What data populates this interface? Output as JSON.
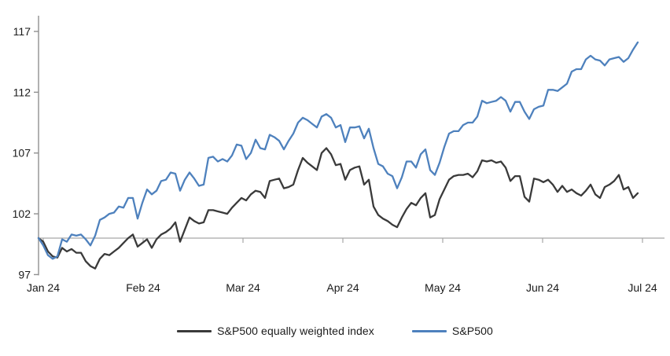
{
  "chart_data": {
    "type": "line",
    "title": "",
    "xlabel": "",
    "ylabel": "",
    "ylim": [
      97,
      117
    ],
    "yticks": [
      97,
      102,
      107,
      112,
      117
    ],
    "xtick_labels": [
      "Jan 24",
      "Feb 24",
      "Mar 24",
      "Apr 24",
      "May 24",
      "Jun 24",
      "Jul 24"
    ],
    "axis_crosses_at": 100,
    "grid": false,
    "legend_position": "bottom",
    "axis_color": "#909090",
    "reference_line_color": "#a6a6a6",
    "tick_label_color": "#1a1a1a",
    "x": [
      "Dec 29",
      "Jan 2",
      "Jan 3",
      "Jan 4",
      "Jan 5",
      "Jan 8",
      "Jan 9",
      "Jan 10",
      "Jan 11",
      "Jan 12",
      "Jan 16",
      "Jan 17",
      "Jan 18",
      "Jan 19",
      "Jan 22",
      "Jan 23",
      "Jan 24",
      "Jan 25",
      "Jan 26",
      "Jan 29",
      "Jan 30",
      "Jan 31",
      "Feb 1",
      "Feb 2",
      "Feb 5",
      "Feb 6",
      "Feb 7",
      "Feb 8",
      "Feb 9",
      "Feb 12",
      "Feb 13",
      "Feb 14",
      "Feb 15",
      "Feb 16",
      "Feb 20",
      "Feb 21",
      "Feb 22",
      "Feb 23",
      "Feb 26",
      "Feb 27",
      "Feb 28",
      "Feb 29",
      "Mar 1",
      "Mar 4",
      "Mar 5",
      "Mar 6",
      "Mar 7",
      "Mar 8",
      "Mar 11",
      "Mar 12",
      "Mar 13",
      "Mar 14",
      "Mar 15",
      "Mar 18",
      "Mar 19",
      "Mar 20",
      "Mar 21",
      "Mar 22",
      "Mar 25",
      "Mar 26",
      "Mar 27",
      "Mar 28",
      "Apr 1",
      "Apr 2",
      "Apr 3",
      "Apr 4",
      "Apr 5",
      "Apr 8",
      "Apr 9",
      "Apr 10",
      "Apr 11",
      "Apr 12",
      "Apr 15",
      "Apr 16",
      "Apr 17",
      "Apr 18",
      "Apr 19",
      "Apr 22",
      "Apr 23",
      "Apr 24",
      "Apr 25",
      "Apr 26",
      "Apr 29",
      "Apr 30",
      "May 1",
      "May 2",
      "May 3",
      "May 6",
      "May 7",
      "May 8",
      "May 9",
      "May 10",
      "May 13",
      "May 14",
      "May 15",
      "May 16",
      "May 17",
      "May 20",
      "May 21",
      "May 22",
      "May 23",
      "May 24",
      "May 28",
      "May 29",
      "May 30",
      "May 31",
      "Jun 3",
      "Jun 4",
      "Jun 5",
      "Jun 6",
      "Jun 7",
      "Jun 10",
      "Jun 11",
      "Jun 12",
      "Jun 13",
      "Jun 14",
      "Jun 17",
      "Jun 18",
      "Jun 20",
      "Jun 21",
      "Jun 24",
      "Jun 25",
      "Jun 26",
      "Jun 27",
      "Jun 28",
      "Jul 1",
      "Jul 2",
      "Jul 3"
    ],
    "series": [
      {
        "name": "S&P500 equally weighted index",
        "color": "#3a3a3a",
        "values": [
          100,
          99.7,
          98.9,
          98.5,
          98.4,
          99.2,
          98.9,
          99.1,
          98.8,
          98.8,
          98.1,
          97.7,
          97.5,
          98.3,
          98.7,
          98.6,
          98.9,
          99.2,
          99.6,
          100.0,
          100.3,
          99.3,
          99.6,
          99.9,
          99.2,
          99.9,
          100.3,
          100.5,
          100.8,
          101.3,
          99.7,
          100.7,
          101.7,
          101.4,
          101.2,
          101.3,
          102.3,
          102.3,
          102.2,
          102.1,
          102.0,
          102.5,
          102.9,
          103.3,
          103.1,
          103.6,
          103.9,
          103.8,
          103.3,
          104.7,
          104.8,
          104.9,
          104.1,
          104.2,
          104.4,
          105.6,
          106.6,
          106.2,
          105.9,
          105.6,
          107.0,
          107.4,
          106.9,
          106.0,
          106.1,
          104.8,
          105.6,
          105.8,
          105.9,
          104.4,
          104.8,
          102.6,
          101.9,
          101.6,
          101.4,
          101.1,
          100.9,
          101.7,
          102.4,
          102.9,
          102.7,
          103.3,
          103.7,
          101.7,
          101.9,
          103.2,
          104.0,
          104.8,
          105.1,
          105.2,
          105.2,
          105.3,
          105.0,
          105.5,
          106.4,
          106.3,
          106.4,
          106.2,
          106.3,
          105.8,
          104.7,
          105.1,
          105.1,
          103.4,
          103.0,
          104.9,
          104.8,
          104.6,
          104.8,
          104.4,
          103.8,
          104.3,
          103.8,
          104.0,
          103.7,
          103.5,
          103.9,
          104.4,
          103.6,
          103.3,
          104.2,
          104.4,
          104.7,
          105.2,
          104.0,
          104.2,
          103.3,
          103.7
        ]
      },
      {
        "name": "S&P500",
        "color": "#4e81bd",
        "values": [
          100,
          99.4,
          98.6,
          98.3,
          98.5,
          99.9,
          99.7,
          100.3,
          100.2,
          100.3,
          99.9,
          99.4,
          100.2,
          101.5,
          101.7,
          102.0,
          102.1,
          102.6,
          102.5,
          103.3,
          103.3,
          101.6,
          102.9,
          104.0,
          103.6,
          103.9,
          104.7,
          104.8,
          105.4,
          105.3,
          103.9,
          104.8,
          105.4,
          104.9,
          104.3,
          104.4,
          106.6,
          106.7,
          106.3,
          106.5,
          106.3,
          106.8,
          107.7,
          107.6,
          106.5,
          107.0,
          108.1,
          107.4,
          107.3,
          108.5,
          108.3,
          108.0,
          107.3,
          108.0,
          108.6,
          109.5,
          109.9,
          109.7,
          109.4,
          109.1,
          110.0,
          110.2,
          109.9,
          109.1,
          109.3,
          107.9,
          109.1,
          109.1,
          109.2,
          108.2,
          109.0,
          107.4,
          106.1,
          105.9,
          105.3,
          105.1,
          104.1,
          105.0,
          106.3,
          106.3,
          105.8,
          106.9,
          107.3,
          105.6,
          105.2,
          106.2,
          107.5,
          108.6,
          108.8,
          108.8,
          109.3,
          109.5,
          109.5,
          110.0,
          111.3,
          111.1,
          111.2,
          111.3,
          111.6,
          111.3,
          110.4,
          111.2,
          111.2,
          110.4,
          109.8,
          110.6,
          110.8,
          110.9,
          112.2,
          112.2,
          112.1,
          112.4,
          112.7,
          113.7,
          113.9,
          113.9,
          114.7,
          115.0,
          114.7,
          114.6,
          114.2,
          114.7,
          114.8,
          114.9,
          114.5,
          114.8,
          115.5,
          116.1
        ]
      }
    ]
  }
}
